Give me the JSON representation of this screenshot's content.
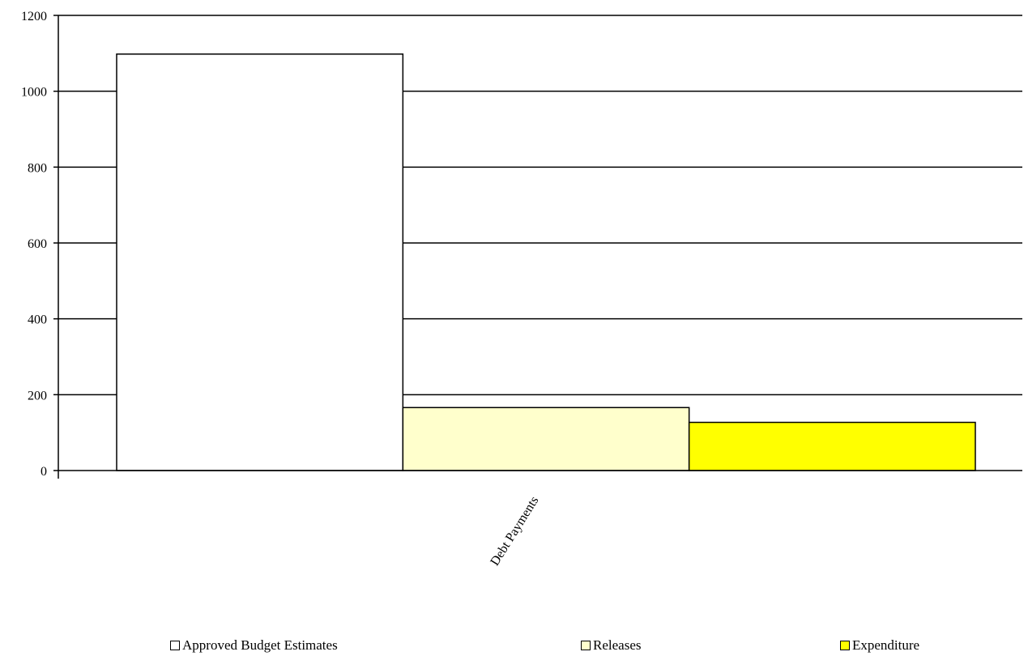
{
  "chart_data": {
    "type": "bar",
    "title": "",
    "xlabel": "",
    "ylabel": "",
    "categories": [
      "Debt Payments"
    ],
    "series": [
      {
        "name": "Approved Budget Estimates",
        "values": [
          1098
        ],
        "color": "#FFFFFF"
      },
      {
        "name": "Releases",
        "values": [
          166
        ],
        "color": "#FFFFCC"
      },
      {
        "name": "Expenditure",
        "values": [
          127
        ],
        "color": "#FFFF00"
      }
    ],
    "ylim": [
      0,
      1200
    ],
    "yticks": [
      "0",
      "200",
      "400",
      "600",
      "800",
      "1000",
      "1200"
    ],
    "grid": true,
    "legend_position": "bottom"
  }
}
